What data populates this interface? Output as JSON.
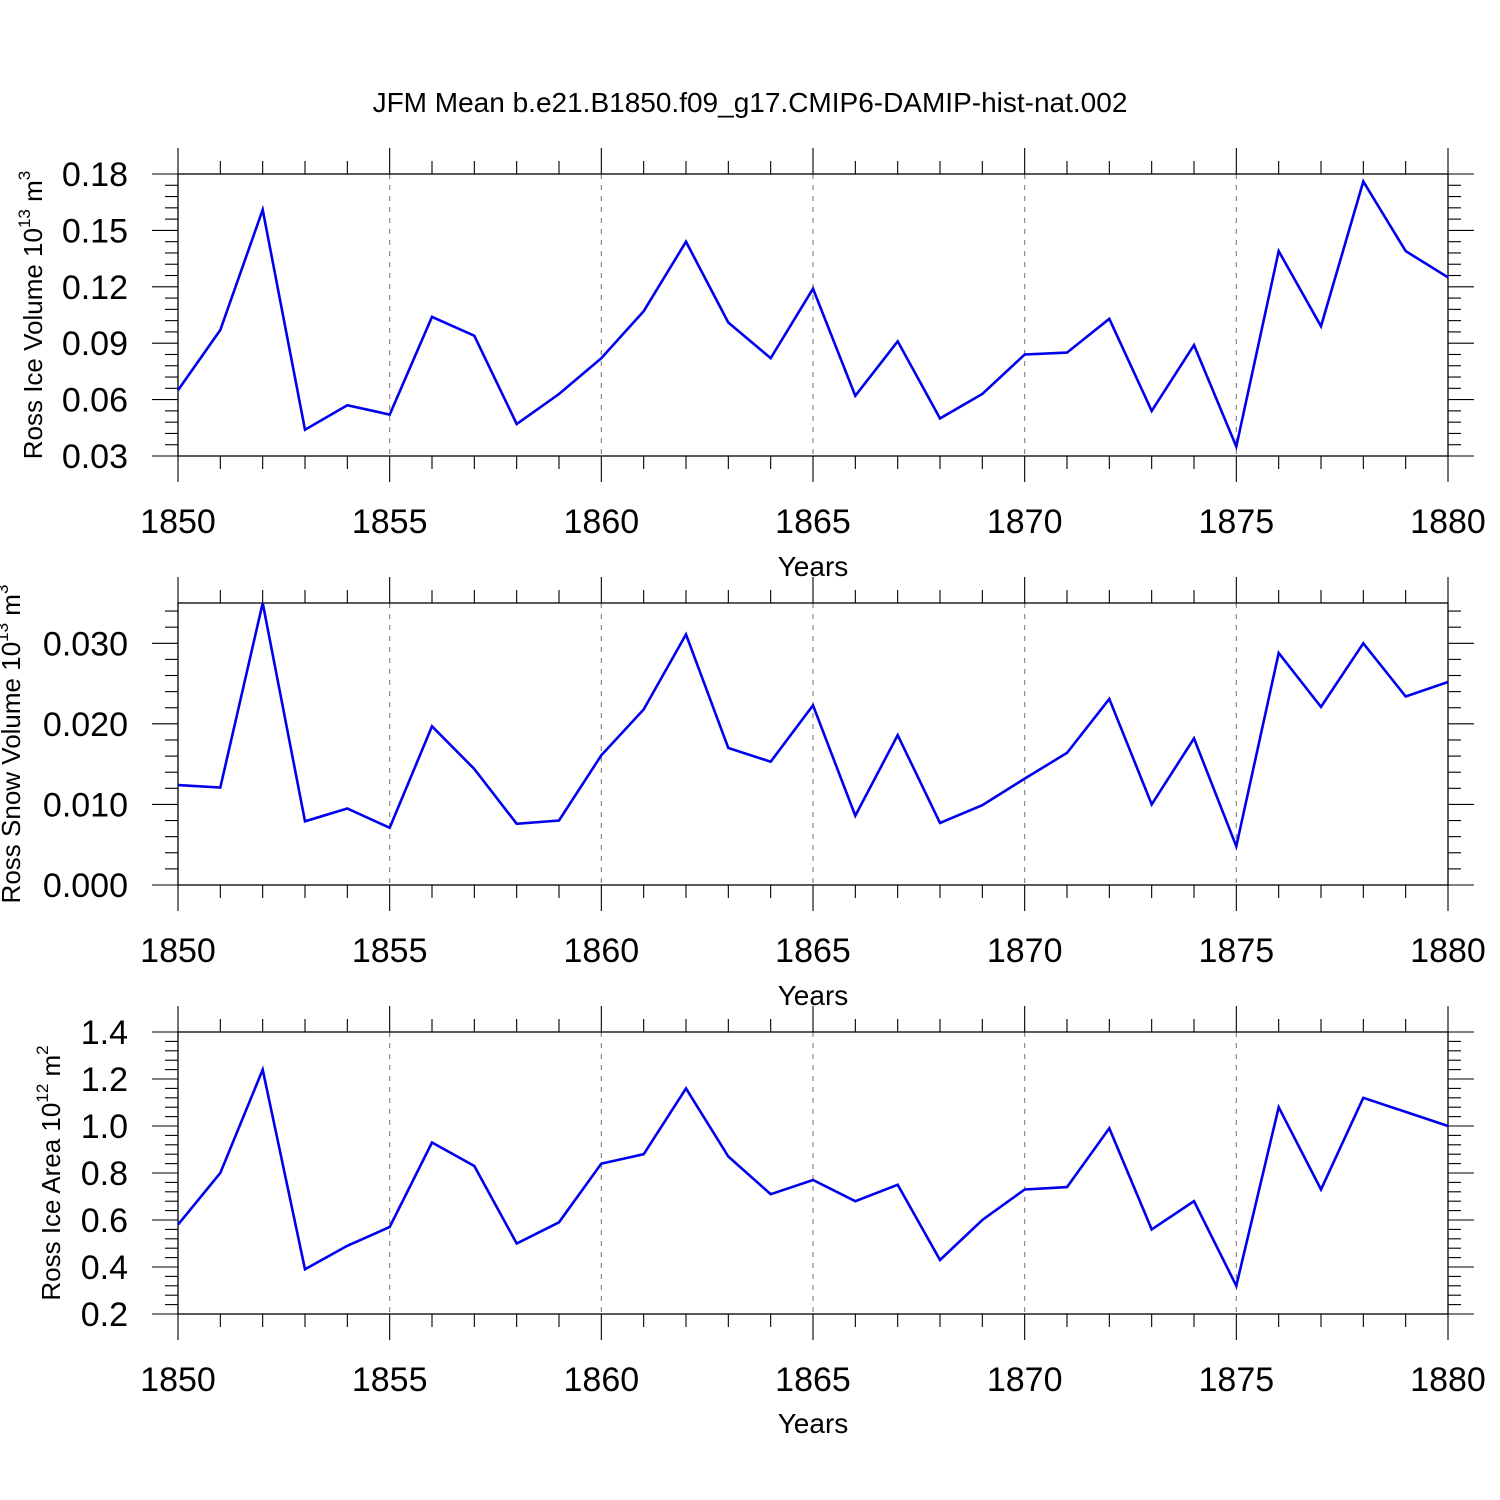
{
  "title": "JFM Mean b.e21.B1850.f09_g17.CMIP6-DAMIP-hist-nat.002",
  "chart_data": [
    {
      "type": "line",
      "xlabel": "Years",
      "ylabel": {
        "text": "Ross Ice Volume 10",
        "exp": "13",
        "unit": "m",
        "unit_exp": "3"
      },
      "xlim": [
        1850,
        1880
      ],
      "ylim": [
        0.03,
        0.18
      ],
      "xticks": [
        "1850",
        "1855",
        "1860",
        "1865",
        "1870",
        "1875",
        "1880"
      ],
      "yticks": [
        "0.03",
        "0.06",
        "0.09",
        "0.12",
        "0.15",
        "0.18"
      ],
      "grid": "vertical dashed at major x ticks",
      "line_color": "#0000ee",
      "x": [
        1850,
        1851,
        1852,
        1853,
        1854,
        1855,
        1856,
        1857,
        1858,
        1859,
        1860,
        1861,
        1862,
        1863,
        1864,
        1865,
        1866,
        1867,
        1868,
        1869,
        1870,
        1871,
        1872,
        1873,
        1874,
        1875,
        1876,
        1877,
        1878,
        1879,
        1880
      ],
      "values": [
        0.065,
        0.097,
        0.161,
        0.044,
        0.057,
        0.052,
        0.104,
        0.094,
        0.047,
        0.063,
        0.082,
        0.107,
        0.144,
        0.101,
        0.082,
        0.119,
        0.062,
        0.091,
        0.05,
        0.063,
        0.084,
        0.085,
        0.103,
        0.054,
        0.089,
        0.035,
        0.139,
        0.099,
        0.176,
        0.139,
        0.125
      ]
    },
    {
      "type": "line",
      "xlabel": "Years",
      "ylabel": {
        "text": "Ross Snow Volume 10",
        "exp": "13",
        "unit": "m",
        "unit_exp": "3"
      },
      "xlim": [
        1850,
        1880
      ],
      "ylim": [
        0.0,
        0.035
      ],
      "xticks": [
        "1850",
        "1855",
        "1860",
        "1865",
        "1870",
        "1875",
        "1880"
      ],
      "yticks": [
        "0.000",
        "0.010",
        "0.020",
        "0.030"
      ],
      "ytick_values": [
        0.0,
        0.01,
        0.02,
        0.03
      ],
      "grid": "vertical dashed at major x ticks",
      "line_color": "#0000ee",
      "x": [
        1850,
        1851,
        1852,
        1853,
        1854,
        1855,
        1856,
        1857,
        1858,
        1859,
        1860,
        1861,
        1862,
        1863,
        1864,
        1865,
        1866,
        1867,
        1868,
        1869,
        1870,
        1871,
        1872,
        1873,
        1874,
        1875,
        1876,
        1877,
        1878,
        1879,
        1880
      ],
      "values": [
        0.0124,
        0.0121,
        0.035,
        0.0079,
        0.0095,
        0.0071,
        0.0197,
        0.0144,
        0.0076,
        0.008,
        0.0161,
        0.0218,
        0.0311,
        0.017,
        0.0153,
        0.0223,
        0.0086,
        0.0186,
        0.0077,
        0.0099,
        0.0132,
        0.0164,
        0.0231,
        0.01,
        0.0182,
        0.0048,
        0.0288,
        0.0221,
        0.03,
        0.0234,
        0.0252
      ]
    },
    {
      "type": "line",
      "xlabel": "Years",
      "ylabel": {
        "text": "Ross Ice Area 10",
        "exp": "12",
        "unit": "m",
        "unit_exp": "2"
      },
      "xlim": [
        1850,
        1880
      ],
      "ylim": [
        0.2,
        1.4
      ],
      "xticks": [
        "1850",
        "1855",
        "1860",
        "1865",
        "1870",
        "1875",
        "1880"
      ],
      "yticks": [
        "0.2",
        "0.4",
        "0.6",
        "0.8",
        "1.0",
        "1.2",
        "1.4"
      ],
      "grid": "vertical dashed at major x ticks",
      "line_color": "#0000ee",
      "x": [
        1850,
        1851,
        1852,
        1853,
        1854,
        1855,
        1856,
        1857,
        1858,
        1859,
        1860,
        1861,
        1862,
        1863,
        1864,
        1865,
        1866,
        1867,
        1868,
        1869,
        1870,
        1871,
        1872,
        1873,
        1874,
        1875,
        1876,
        1877,
        1878,
        1879,
        1880
      ],
      "values": [
        0.58,
        0.8,
        1.24,
        0.39,
        0.49,
        0.57,
        0.93,
        0.83,
        0.5,
        0.59,
        0.84,
        0.88,
        1.16,
        0.87,
        0.71,
        0.77,
        0.68,
        0.75,
        0.43,
        0.6,
        0.73,
        0.74,
        0.99,
        0.56,
        0.68,
        0.32,
        1.08,
        0.73,
        1.12,
        1.06,
        1.0
      ]
    }
  ]
}
